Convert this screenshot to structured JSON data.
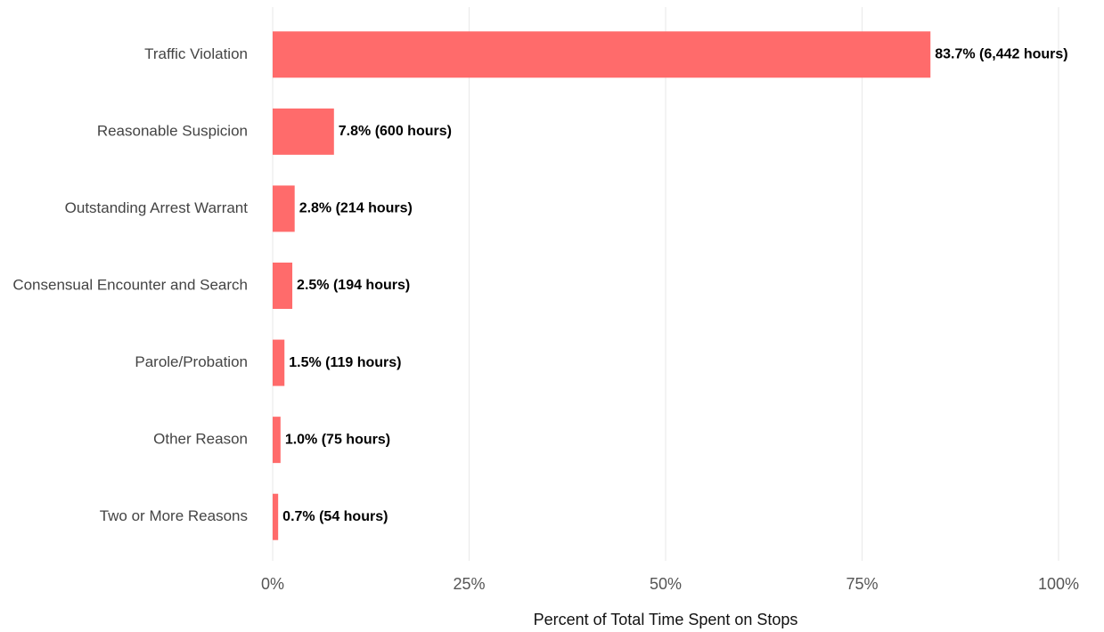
{
  "chart_data": {
    "type": "barh",
    "categories": [
      "Traffic Violation",
      "Reasonable Suspicion",
      "Outstanding Arrest Warrant",
      "Consensual Encounter and Search",
      "Parole/Probation",
      "Other Reason",
      "Two or More Reasons"
    ],
    "values": [
      83.7,
      7.8,
      2.8,
      2.5,
      1.5,
      1.0,
      0.7
    ],
    "value_labels": [
      "83.7% (6,442 hours)",
      "7.8% (600 hours)",
      "2.8% (214 hours)",
      "2.5% (194 hours)",
      "1.5% (119 hours)",
      "1.0% (75 hours)",
      "0.7% (54 hours)"
    ],
    "color": "#ff6b6b",
    "xlabel": "Percent of Total Time Spent on Stops",
    "xlim": [
      0,
      100
    ],
    "xticks": [
      {
        "value": 0,
        "label": "0%"
      },
      {
        "value": 25,
        "label": "25%"
      },
      {
        "value": 50,
        "label": "50%"
      },
      {
        "value": 75,
        "label": "75%"
      },
      {
        "value": 100,
        "label": "100%"
      }
    ],
    "grid": true
  }
}
